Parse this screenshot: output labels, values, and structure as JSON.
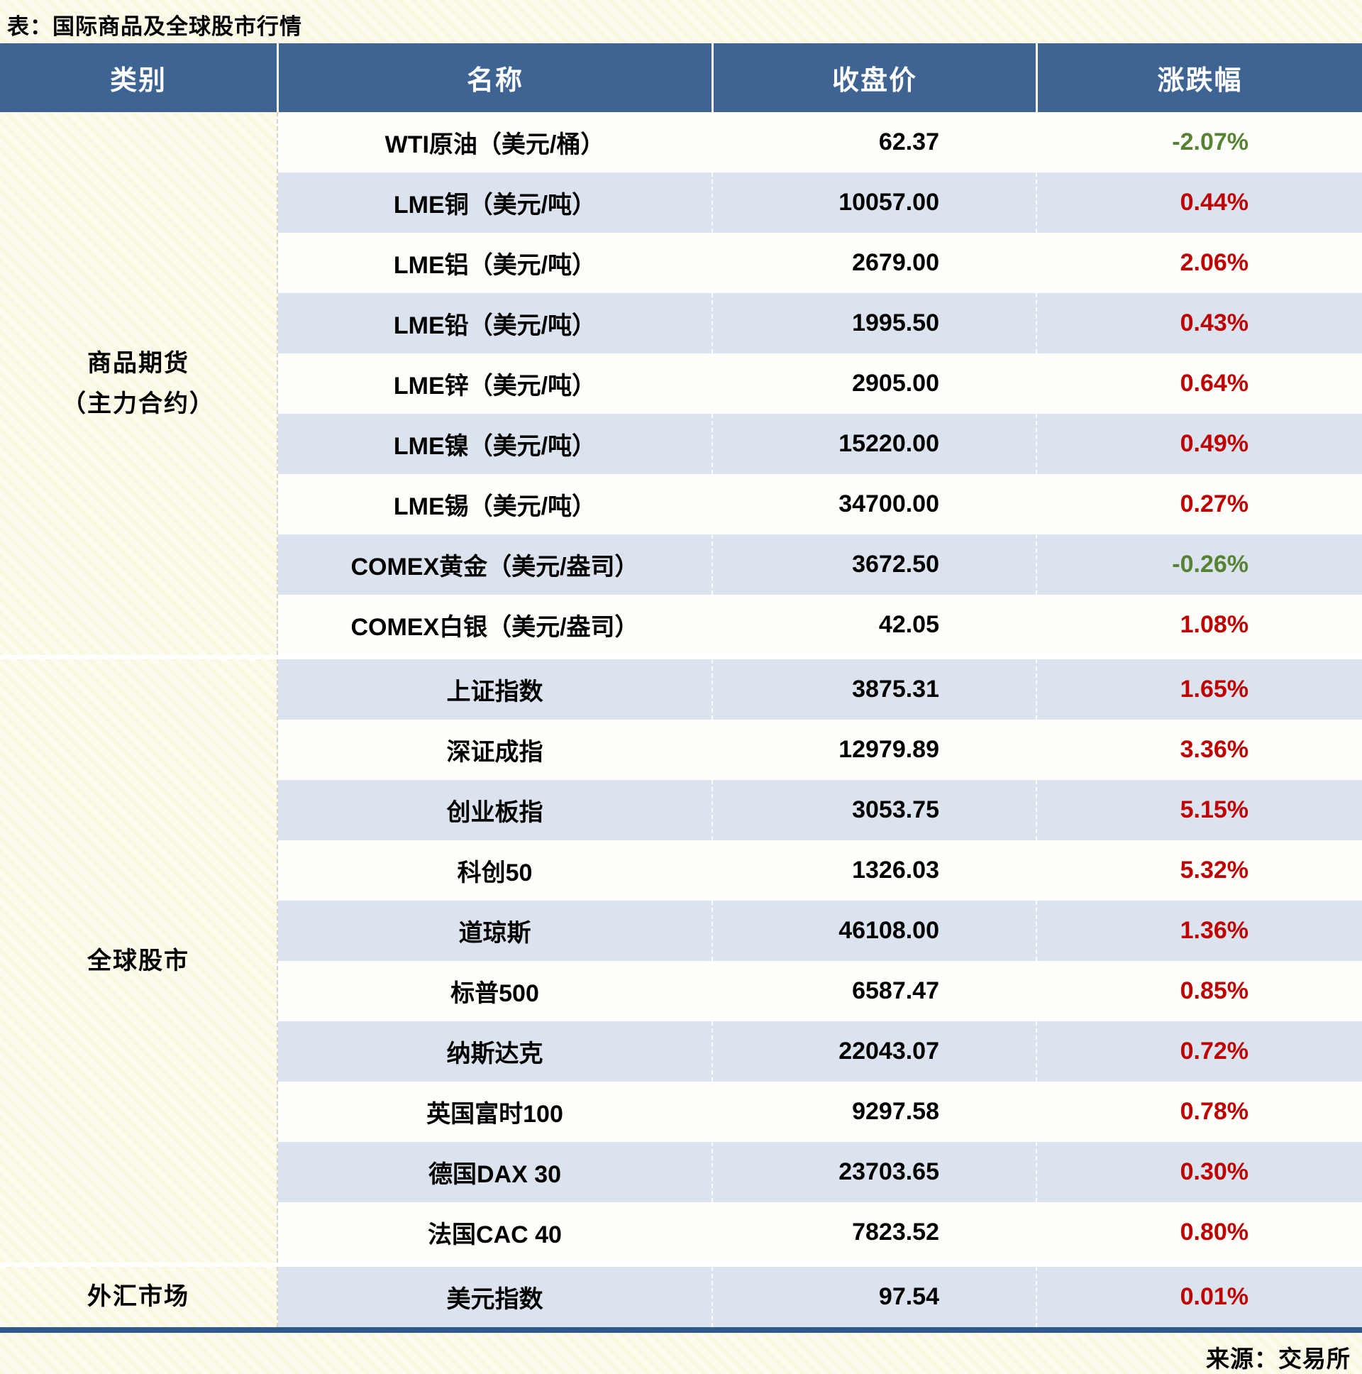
{
  "chart_data": {
    "type": "table",
    "title": "表：国际商品及全球股市行情",
    "columns": [
      "类别",
      "名称",
      "收盘价",
      "涨跌幅"
    ],
    "sections": [
      {
        "category": "商品期货\n（主力合约）",
        "rows": [
          {
            "name": "WTI原油（美元/桶）",
            "close": "62.37",
            "change": "-2.07%",
            "dir": "down"
          },
          {
            "name": "LME铜（美元/吨）",
            "close": "10057.00",
            "change": "0.44%",
            "dir": "up"
          },
          {
            "name": "LME铝（美元/吨）",
            "close": "2679.00",
            "change": "2.06%",
            "dir": "up"
          },
          {
            "name": "LME铅（美元/吨）",
            "close": "1995.50",
            "change": "0.43%",
            "dir": "up"
          },
          {
            "name": "LME锌（美元/吨）",
            "close": "2905.00",
            "change": "0.64%",
            "dir": "up"
          },
          {
            "name": "LME镍（美元/吨）",
            "close": "15220.00",
            "change": "0.49%",
            "dir": "up"
          },
          {
            "name": "LME锡（美元/吨）",
            "close": "34700.00",
            "change": "0.27%",
            "dir": "up"
          },
          {
            "name": "COMEX黄金（美元/盎司）",
            "close": "3672.50",
            "change": "-0.26%",
            "dir": "down"
          },
          {
            "name": "COMEX白银（美元/盎司）",
            "close": "42.05",
            "change": "1.08%",
            "dir": "up"
          }
        ]
      },
      {
        "category": "全球股市",
        "rows": [
          {
            "name": "上证指数",
            "close": "3875.31",
            "change": "1.65%",
            "dir": "up"
          },
          {
            "name": "深证成指",
            "close": "12979.89",
            "change": "3.36%",
            "dir": "up"
          },
          {
            "name": "创业板指",
            "close": "3053.75",
            "change": "5.15%",
            "dir": "up"
          },
          {
            "name": "科创50",
            "close": "1326.03",
            "change": "5.32%",
            "dir": "up"
          },
          {
            "name": "道琼斯",
            "close": "46108.00",
            "change": "1.36%",
            "dir": "up"
          },
          {
            "name": "标普500",
            "close": "6587.47",
            "change": "0.85%",
            "dir": "up"
          },
          {
            "name": "纳斯达克",
            "close": "22043.07",
            "change": "0.72%",
            "dir": "up"
          },
          {
            "name": "英国富时100",
            "close": "9297.58",
            "change": "0.78%",
            "dir": "up"
          },
          {
            "name": "德国DAX 30",
            "close": "23703.65",
            "change": "0.30%",
            "dir": "up"
          },
          {
            "name": "法国CAC 40",
            "close": "7823.52",
            "change": "0.80%",
            "dir": "up"
          }
        ]
      },
      {
        "category": "外汇市场",
        "rows": [
          {
            "name": "美元指数",
            "close": "97.54",
            "change": "0.01%",
            "dir": "up"
          }
        ]
      }
    ],
    "source": "来源：交易所"
  },
  "colors": {
    "up": "#c00000",
    "down": "#568233",
    "header_bg": "#3d6493",
    "row_alt": "#dbe3ee",
    "border_blue": "#2e5a8c"
  }
}
